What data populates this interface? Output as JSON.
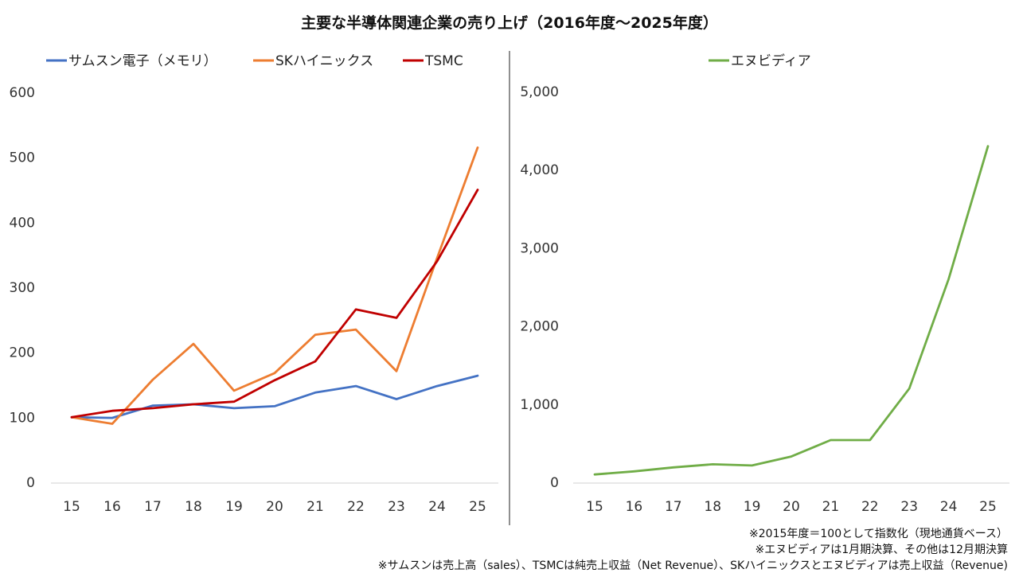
{
  "title": "主要な半導体関連企業の売り上げ（2016年度〜2025年度）",
  "chart_data": [
    {
      "type": "line",
      "title": "",
      "xlabel": "",
      "ylabel": "",
      "categories": [
        "15",
        "16",
        "17",
        "18",
        "19",
        "20",
        "21",
        "22",
        "23",
        "24",
        "25"
      ],
      "ylim": [
        0,
        600
      ],
      "yticks": [
        0,
        100,
        200,
        300,
        400,
        500,
        600
      ],
      "ytick_labels": [
        "0",
        "100",
        "200",
        "300",
        "400",
        "500",
        "600"
      ],
      "grid": false,
      "legend_position": "top",
      "series": [
        {
          "name": "サムスン電子（メモリ）",
          "color": "#4472C4",
          "values": [
            100,
            99,
            118,
            120,
            114,
            117,
            138,
            148,
            128,
            148,
            164
          ]
        },
        {
          "name": "SKハイニックス",
          "color": "#ED7D31",
          "values": [
            100,
            90,
            158,
            213,
            141,
            168,
            227,
            235,
            171,
            345,
            515
          ]
        },
        {
          "name": "TSMC",
          "color": "#C00000",
          "values": [
            100,
            110,
            114,
            120,
            124,
            157,
            186,
            266,
            253,
            340,
            450
          ]
        }
      ]
    },
    {
      "type": "line",
      "title": "",
      "xlabel": "",
      "ylabel": "",
      "categories": [
        "15",
        "16",
        "17",
        "18",
        "19",
        "20",
        "21",
        "22",
        "23",
        "24",
        "25"
      ],
      "ylim": [
        0,
        5000
      ],
      "yticks": [
        0,
        1000,
        2000,
        3000,
        4000,
        5000
      ],
      "ytick_labels": [
        "0",
        "1,000",
        "2,000",
        "3,000",
        "4,000",
        "5,000"
      ],
      "grid": false,
      "legend_position": "top",
      "series": [
        {
          "name": "エヌビディア",
          "color": "#70AD47",
          "values": [
            100,
            140,
            190,
            230,
            215,
            330,
            540,
            540,
            1200,
            2600,
            4300
          ]
        }
      ]
    }
  ],
  "notes": [
    "※2015年度＝100として指数化（現地通貨ベース）",
    "※エヌビディアは1月期決算、その他は12月期決算",
    "※サムスンは売上高（sales）、TSMCは純売上収益（Net Revenue）、SKハイニックスとエヌビディアは売上収益（Revenue)"
  ]
}
